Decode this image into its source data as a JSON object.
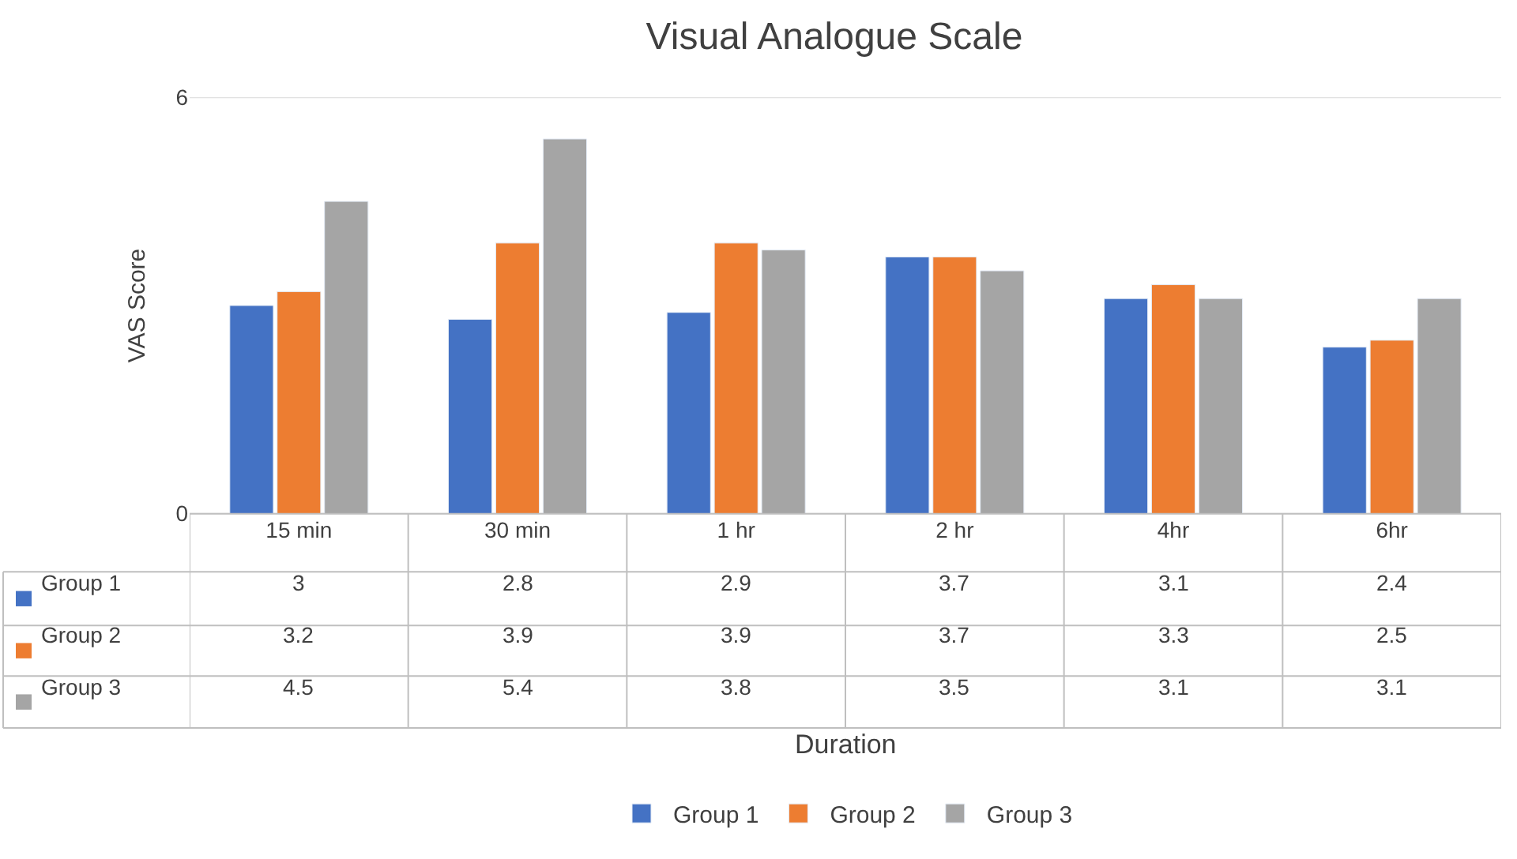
{
  "chart_data": {
    "type": "bar",
    "title": "Visual Analogue Scale",
    "annotations": [
      "Duration"
    ],
    "ylabel": "VAS Score",
    "categories": [
      "15 min",
      "30 min",
      "1 hr",
      "2 hr",
      "4hr",
      "6hr"
    ],
    "series": [
      {
        "name": "Group 1",
        "color": "#4472c4",
        "values": [
          3,
          2.8,
          2.9,
          3.7,
          3.1,
          2.4
        ]
      },
      {
        "name": "Group 2",
        "color": "#ed7d31",
        "values": [
          3.2,
          3.9,
          3.9,
          3.7,
          3.3,
          2.5
        ]
      },
      {
        "name": "Group 3",
        "color": "#a5a5a5",
        "values": [
          4.5,
          5.4,
          3.8,
          3.5,
          3.1,
          3.1
        ]
      }
    ],
    "ylim": [
      0,
      6
    ],
    "yticks": [
      0,
      6
    ],
    "grid": "y",
    "legend": "bottom",
    "data_labels": true
  }
}
